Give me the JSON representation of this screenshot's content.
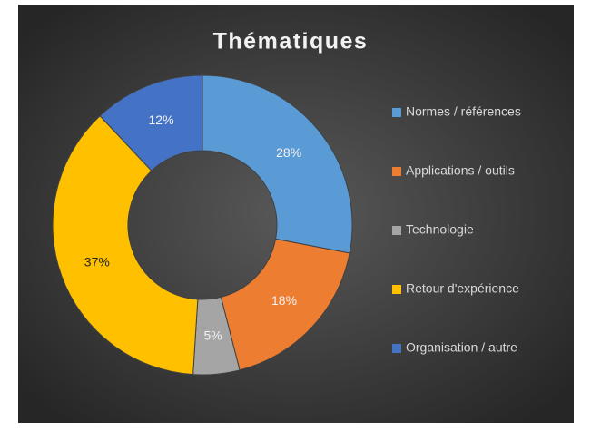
{
  "chart_data": {
    "type": "donut",
    "title": "Thématiques",
    "categories": [
      "Normes / références",
      "Applications / outils",
      "Technologie",
      "Retour d'expérience",
      "Organisation / autre"
    ],
    "values": [
      28,
      18,
      5,
      37,
      12
    ],
    "value_labels": [
      "28%",
      "18%",
      "5%",
      "37%",
      "12%"
    ],
    "colors": [
      "#5b9bd5",
      "#ed7d31",
      "#a5a5a5",
      "#ffc000",
      "#4472c4"
    ],
    "legend": "right"
  }
}
